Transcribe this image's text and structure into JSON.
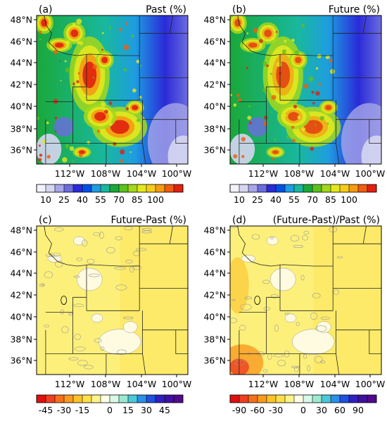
{
  "chart_data": [
    {
      "type": "heatmap",
      "panel_label": "(a)",
      "title": "Past (%)",
      "lat_ticks": [
        "48°N",
        "46°N",
        "44°N",
        "42°N",
        "40°N",
        "38°N",
        "36°N"
      ],
      "lon_ticks": [
        "112°W",
        "108°W",
        "104°W",
        "100°W"
      ],
      "colorbar_ticks": [
        "10",
        "25",
        "40",
        "55",
        "70",
        "85",
        "100"
      ],
      "colorbar_colors": [
        "#f2f2fb",
        "#d6d6f2",
        "#a6a6e8",
        "#6c6ce0",
        "#2a2ad8",
        "#0050e6",
        "#1e9de0",
        "#19b89e",
        "#1aa83a",
        "#5cc11e",
        "#a4d81b",
        "#e2e81e",
        "#f6cc18",
        "#f59a12",
        "#f05c10",
        "#e02010"
      ],
      "colorbar_ticks_at_boundaries": [
        1,
        3,
        5,
        7,
        9,
        11,
        13
      ],
      "scale": "sequential"
    },
    {
      "type": "heatmap",
      "panel_label": "(b)",
      "title": "Future (%)",
      "lat_ticks": [
        "48°N",
        "46°N",
        "44°N",
        "42°N",
        "40°N",
        "38°N",
        "36°N"
      ],
      "lon_ticks": [
        "112°W",
        "108°W",
        "104°W",
        "100°W"
      ],
      "colorbar_ticks": [
        "10",
        "25",
        "40",
        "55",
        "70",
        "85",
        "100"
      ],
      "colorbar_colors": [
        "#f2f2fb",
        "#d6d6f2",
        "#a6a6e8",
        "#6c6ce0",
        "#2a2ad8",
        "#0050e6",
        "#1e9de0",
        "#19b89e",
        "#1aa83a",
        "#5cc11e",
        "#a4d81b",
        "#e2e81e",
        "#f6cc18",
        "#f59a12",
        "#f05c10",
        "#e02010"
      ],
      "colorbar_ticks_at_boundaries": [
        1,
        3,
        5,
        7,
        9,
        11,
        13
      ],
      "scale": "sequential"
    },
    {
      "type": "heatmap",
      "panel_label": "(c)",
      "title": "Future-Past (%)",
      "lat_ticks": [
        "48°N",
        "46°N",
        "44°N",
        "42°N",
        "40°N",
        "38°N",
        "36°N"
      ],
      "lon_ticks": [
        "112°W",
        "108°W",
        "104°W",
        "100°W"
      ],
      "colorbar_ticks": [
        "-45",
        "-30",
        "-15",
        "0",
        "15",
        "30",
        "45"
      ],
      "colorbar_colors": [
        "#e01010",
        "#ee4020",
        "#f5701a",
        "#f99a20",
        "#fbc22a",
        "#fde04a",
        "#fdf48a",
        "#ffffe6",
        "#d8f8e8",
        "#9ee8d0",
        "#4cc8d8",
        "#2a90e8",
        "#2050e0",
        "#3020c0",
        "#4010a0",
        "#500a8a"
      ],
      "colorbar_ticks_at_boundaries": [
        1,
        3,
        5,
        8,
        10,
        12,
        14
      ],
      "scale": "diverging"
    },
    {
      "type": "heatmap",
      "panel_label": "(d)",
      "title": "(Future-Past)/Past (%)",
      "lat_ticks": [
        "48°N",
        "46°N",
        "44°N",
        "42°N",
        "40°N",
        "38°N",
        "36°N"
      ],
      "lon_ticks": [
        "112°W",
        "108°W",
        "104°W",
        "100°W"
      ],
      "colorbar_ticks": [
        "-90",
        "-60",
        "-30",
        "0",
        "30",
        "60",
        "90"
      ],
      "colorbar_colors": [
        "#e01010",
        "#ee4020",
        "#f5701a",
        "#f99a20",
        "#fbc22a",
        "#fde04a",
        "#fdf48a",
        "#ffffe6",
        "#d8f8e8",
        "#9ee8d0",
        "#4cc8d8",
        "#2a90e8",
        "#2050e0",
        "#3020c0",
        "#4010a0",
        "#500a8a"
      ],
      "colorbar_ticks_at_boundaries": [
        1,
        3,
        5,
        8,
        10,
        12,
        14
      ],
      "scale": "diverging"
    }
  ]
}
